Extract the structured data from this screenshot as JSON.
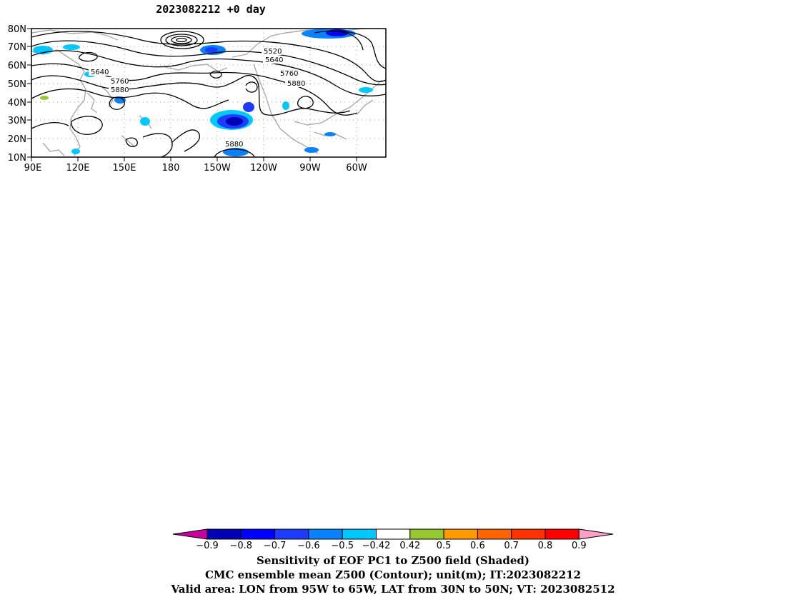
{
  "title": "2023082212 +0 day",
  "map": {
    "lat_labels": [
      "80N",
      "70N",
      "60N",
      "50N",
      "40N",
      "30N",
      "20N",
      "10N"
    ],
    "lon_labels": [
      "90E",
      "120E",
      "150E",
      "180",
      "150W",
      "120W",
      "90W",
      "60W"
    ],
    "contour_labels": [
      {
        "text": "5520"
      },
      {
        "text": "5640"
      },
      {
        "text": "5640"
      },
      {
        "text": "5760"
      },
      {
        "text": "5760"
      },
      {
        "text": "5880"
      },
      {
        "text": "5880"
      },
      {
        "text": "5880"
      }
    ]
  },
  "colorbar": {
    "labels": [
      "-0.9",
      "-0.8",
      "-0.7",
      "-0.6",
      "-0.5",
      "-0.42",
      "0.42",
      "0.5",
      "0.6",
      "0.7",
      "0.8",
      "0.9"
    ],
    "colors": [
      "#0000b4",
      "#0000ff",
      "#1e3cff",
      "#0a82ff",
      "#00c8ff",
      "#ffffff",
      "#96c832",
      "#ff9b00",
      "#ff6400",
      "#ff3200",
      "#ff0000"
    ],
    "low_end_color": "#c800a0",
    "high_end_color": "#ffa0c8"
  },
  "captions": {
    "line1": "Sensitivity of EOF PC1 to Z500 field (Shaded)",
    "line2": "CMC ensemble mean Z500 (Contour); unit(m); IT:2023082212",
    "line3": "Valid area: LON from 95W to 65W, LAT from 30N to 50N; VT: 2023082512"
  }
}
